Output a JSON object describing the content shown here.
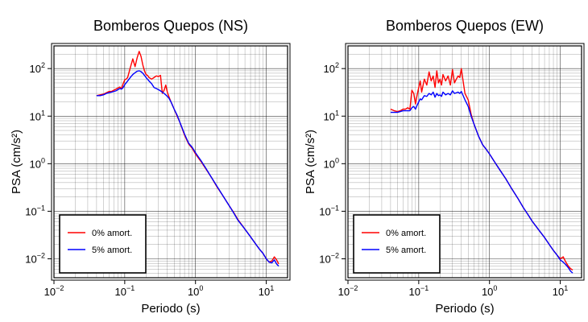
{
  "figure": {
    "background": "#ffffff"
  },
  "chart_data": [
    {
      "type": "line",
      "title": "Bomberos Quepos (NS)",
      "xlabel": "Periodo (s)",
      "ylabel": "PSA (cm/s²)",
      "x_scale": "log",
      "y_scale": "log",
      "xlim": [
        0.01,
        20
      ],
      "ylim": [
        0.004,
        300
      ],
      "x_ticks": [
        0.01,
        0.1,
        1,
        10
      ],
      "x_tick_labels": [
        "10^-2",
        "10^-1",
        "10^0",
        "10^1"
      ],
      "y_ticks": [
        0.01,
        0.1,
        1,
        10,
        100
      ],
      "y_tick_labels": [
        "10^-2",
        "10^-1",
        "10^0",
        "10^1",
        "10^2"
      ],
      "grid": true,
      "legend_position": "bottom-left",
      "series": [
        {
          "name": "0% amort.",
          "color": "#ff0000",
          "x": [
            0.04,
            0.045,
            0.05,
            0.055,
            0.06,
            0.065,
            0.07,
            0.075,
            0.08,
            0.085,
            0.09,
            0.095,
            0.1,
            0.105,
            0.11,
            0.12,
            0.13,
            0.14,
            0.15,
            0.16,
            0.17,
            0.18,
            0.19,
            0.2,
            0.21,
            0.22,
            0.24,
            0.26,
            0.28,
            0.3,
            0.32,
            0.34,
            0.36,
            0.38,
            0.4,
            0.42,
            0.45,
            0.5,
            0.55,
            0.6,
            0.7,
            0.8,
            0.9,
            1.0,
            1.2,
            1.4,
            1.7,
            2.0,
            2.5,
            3.0,
            3.5,
            4.0,
            5.0,
            6.0,
            7.0,
            8.0,
            9.0,
            10.0,
            11.0,
            12.0,
            13.0,
            14.0,
            15.0
          ],
          "y": [
            27,
            28,
            29,
            31,
            33,
            33,
            35,
            37,
            39,
            41,
            38,
            48,
            58,
            60,
            65,
            105,
            160,
            110,
            170,
            230,
            180,
            120,
            90,
            75,
            72,
            65,
            60,
            65,
            70,
            68,
            72,
            30,
            35,
            45,
            32,
            26,
            20,
            14,
            10,
            7.5,
            4,
            2.6,
            2.1,
            1.6,
            1.1,
            0.78,
            0.5,
            0.33,
            0.2,
            0.13,
            0.092,
            0.066,
            0.042,
            0.029,
            0.021,
            0.016,
            0.013,
            0.01,
            0.0085,
            0.009,
            0.011,
            0.0095,
            0.0078
          ]
        },
        {
          "name": "5% amort.",
          "color": "#0000ff",
          "x": [
            0.04,
            0.045,
            0.05,
            0.055,
            0.06,
            0.065,
            0.07,
            0.075,
            0.08,
            0.085,
            0.09,
            0.095,
            0.1,
            0.105,
            0.11,
            0.12,
            0.13,
            0.14,
            0.15,
            0.16,
            0.17,
            0.18,
            0.19,
            0.2,
            0.21,
            0.22,
            0.24,
            0.26,
            0.28,
            0.3,
            0.32,
            0.34,
            0.36,
            0.38,
            0.4,
            0.42,
            0.45,
            0.5,
            0.55,
            0.6,
            0.7,
            0.8,
            0.9,
            1.0,
            1.2,
            1.4,
            1.7,
            2.0,
            2.5,
            3.0,
            3.5,
            4.0,
            5.0,
            6.0,
            7.0,
            8.0,
            9.0,
            10.0,
            11.0,
            12.0,
            13.0,
            14.0,
            15.0
          ],
          "y": [
            27,
            27,
            28,
            30,
            31,
            32,
            33,
            34,
            36,
            38,
            37,
            40,
            46,
            50,
            55,
            65,
            75,
            82,
            88,
            90,
            86,
            80,
            72,
            65,
            60,
            55,
            48,
            40,
            38,
            36,
            34,
            32,
            30,
            28,
            26,
            24,
            20,
            14,
            10.5,
            7.5,
            4.2,
            2.7,
            2.2,
            1.7,
            1.15,
            0.8,
            0.5,
            0.34,
            0.2,
            0.13,
            0.09,
            0.064,
            0.042,
            0.029,
            0.021,
            0.016,
            0.013,
            0.01,
            0.0085,
            0.0082,
            0.0095,
            0.0078,
            0.007
          ]
        }
      ]
    },
    {
      "type": "line",
      "title": "Bomberos Quepos (EW)",
      "xlabel": "Periodo (s)",
      "ylabel": "PSA (cm/s²)",
      "x_scale": "log",
      "y_scale": "log",
      "xlim": [
        0.01,
        20
      ],
      "ylim": [
        0.004,
        300
      ],
      "x_ticks": [
        0.01,
        0.1,
        1,
        10
      ],
      "x_tick_labels": [
        "10^-2",
        "10^-1",
        "10^0",
        "10^1"
      ],
      "y_ticks": [
        0.01,
        0.1,
        1,
        10,
        100
      ],
      "y_tick_labels": [
        "10^-2",
        "10^-1",
        "10^0",
        "10^1",
        "10^2"
      ],
      "grid": true,
      "legend_position": "bottom-left",
      "series": [
        {
          "name": "0% amort.",
          "color": "#ff0000",
          "x": [
            0.04,
            0.045,
            0.05,
            0.055,
            0.06,
            0.065,
            0.07,
            0.075,
            0.08,
            0.085,
            0.09,
            0.095,
            0.1,
            0.105,
            0.11,
            0.12,
            0.13,
            0.14,
            0.15,
            0.16,
            0.17,
            0.18,
            0.19,
            0.2,
            0.21,
            0.22,
            0.24,
            0.26,
            0.28,
            0.3,
            0.32,
            0.34,
            0.36,
            0.38,
            0.4,
            0.42,
            0.45,
            0.5,
            0.55,
            0.6,
            0.7,
            0.8,
            0.9,
            1.0,
            1.2,
            1.4,
            1.7,
            2.0,
            2.5,
            3.0,
            3.5,
            4.0,
            5.0,
            6.0,
            7.0,
            8.0,
            9.0,
            10.0,
            11.0,
            12.0,
            13.0,
            14.0,
            15.0
          ],
          "y": [
            14,
            13,
            12.5,
            13,
            14,
            14,
            15,
            14,
            35,
            30,
            18,
            28,
            40,
            55,
            32,
            60,
            45,
            85,
            55,
            70,
            40,
            90,
            50,
            60,
            45,
            75,
            55,
            70,
            45,
            95,
            50,
            60,
            70,
            65,
            100,
            60,
            30,
            22,
            11,
            7,
            3.8,
            2.5,
            2.0,
            1.6,
            1.05,
            0.74,
            0.48,
            0.32,
            0.19,
            0.12,
            0.085,
            0.062,
            0.04,
            0.028,
            0.02,
            0.015,
            0.012,
            0.01,
            0.011,
            0.0085,
            0.007,
            0.0062,
            0.0058
          ]
        },
        {
          "name": "5% amort.",
          "color": "#0000ff",
          "x": [
            0.04,
            0.045,
            0.05,
            0.055,
            0.06,
            0.065,
            0.07,
            0.075,
            0.08,
            0.085,
            0.09,
            0.095,
            0.1,
            0.105,
            0.11,
            0.12,
            0.13,
            0.14,
            0.15,
            0.16,
            0.17,
            0.18,
            0.19,
            0.2,
            0.21,
            0.22,
            0.24,
            0.26,
            0.28,
            0.3,
            0.32,
            0.34,
            0.36,
            0.38,
            0.4,
            0.42,
            0.45,
            0.5,
            0.55,
            0.6,
            0.7,
            0.8,
            0.9,
            1.0,
            1.2,
            1.4,
            1.7,
            2.0,
            2.5,
            3.0,
            3.5,
            4.0,
            5.0,
            6.0,
            7.0,
            8.0,
            9.0,
            10.0,
            11.0,
            12.0,
            13.0,
            14.0,
            15.0
          ],
          "y": [
            12,
            12,
            12,
            12.5,
            13,
            13,
            13,
            13,
            15,
            16,
            14,
            17,
            20,
            23,
            22,
            27,
            26,
            30,
            28,
            32,
            25,
            30,
            27,
            28,
            26,
            32,
            28,
            30,
            28,
            34,
            30,
            31,
            32,
            30,
            33,
            28,
            22,
            16,
            10,
            7,
            3.8,
            2.5,
            2.0,
            1.6,
            1.05,
            0.74,
            0.48,
            0.32,
            0.19,
            0.12,
            0.085,
            0.062,
            0.04,
            0.028,
            0.02,
            0.015,
            0.012,
            0.0095,
            0.0085,
            0.0075,
            0.0065,
            0.0055,
            0.005
          ]
        }
      ]
    }
  ]
}
